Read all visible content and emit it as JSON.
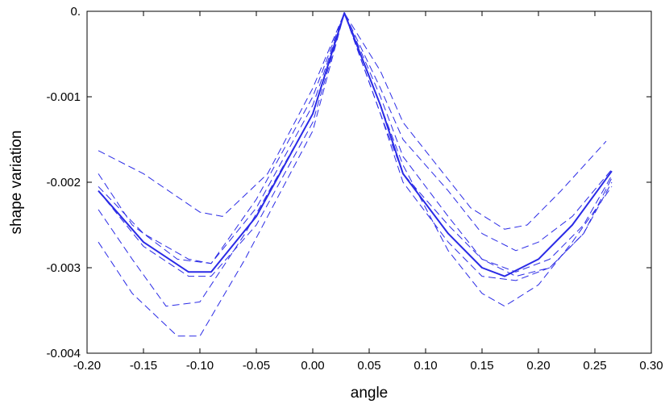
{
  "chart_data": {
    "type": "line",
    "title": "",
    "xlabel": "angle",
    "ylabel": "shape variation",
    "xlim": [
      -0.2,
      0.3
    ],
    "ylim": [
      -0.004,
      0.0
    ],
    "x_ticks": [
      "-0.20",
      "-0.15",
      "-0.10",
      "-0.05",
      "0.00",
      "0.05",
      "0.10",
      "0.15",
      "0.20",
      "0.25",
      "0.30"
    ],
    "y_ticks": [
      "0.",
      "-0.001",
      "-0.002",
      "-0.003",
      "-0.004"
    ],
    "x_tick_values": [
      -0.2,
      -0.15,
      -0.1,
      -0.05,
      0.0,
      0.05,
      0.1,
      0.15,
      0.2,
      0.25,
      0.3
    ],
    "y_tick_values": [
      0.0,
      -0.001,
      -0.002,
      -0.003,
      -0.004
    ],
    "grid": false,
    "legend": false,
    "line_color": "#2a2ae6",
    "series": [
      {
        "style": "solid",
        "x": [
          -0.19,
          -0.15,
          -0.11,
          -0.09,
          -0.05,
          0.0,
          0.028,
          0.06,
          0.08,
          0.12,
          0.15,
          0.17,
          0.2,
          0.23,
          0.265
        ],
        "y": [
          -0.0021,
          -0.0027,
          -0.00305,
          -0.00305,
          -0.0024,
          -0.0012,
          -2e-05,
          -0.0011,
          -0.0019,
          -0.0026,
          -0.003,
          -0.0031,
          -0.0029,
          -0.0025,
          -0.00187
        ]
      },
      {
        "style": "dashed",
        "x": [
          -0.19,
          -0.15,
          -0.1,
          -0.08,
          -0.04,
          0.0,
          0.028,
          0.06,
          0.08,
          0.11,
          0.14,
          0.17,
          0.19,
          0.22,
          0.26
        ],
        "y": [
          -0.00163,
          -0.0019,
          -0.00235,
          -0.0024,
          -0.0019,
          -0.0009,
          -2e-05,
          -0.0007,
          -0.0013,
          -0.0018,
          -0.0023,
          -0.00255,
          -0.0025,
          -0.0021,
          -0.00152
        ]
      },
      {
        "style": "dashed",
        "x": [
          -0.19,
          -0.16,
          -0.12,
          -0.09,
          -0.05,
          0.0,
          0.028,
          0.06,
          0.08,
          0.12,
          0.15,
          0.18,
          0.2,
          0.23,
          0.265
        ],
        "y": [
          -0.0019,
          -0.0025,
          -0.0029,
          -0.00295,
          -0.0023,
          -0.0011,
          -2e-05,
          -0.0009,
          -0.0015,
          -0.0021,
          -0.0026,
          -0.0028,
          -0.0027,
          -0.0024,
          -0.00185
        ]
      },
      {
        "style": "dashed",
        "x": [
          -0.19,
          -0.16,
          -0.13,
          -0.1,
          -0.06,
          0.0,
          0.028,
          0.06,
          0.08,
          0.12,
          0.15,
          0.18,
          0.21,
          0.24,
          0.265
        ],
        "y": [
          -0.00232,
          -0.0029,
          -0.00345,
          -0.0034,
          -0.0026,
          -0.0012,
          -2e-05,
          -0.001,
          -0.0017,
          -0.0024,
          -0.0029,
          -0.0031,
          -0.003,
          -0.0026,
          -0.00195
        ]
      },
      {
        "style": "dashed",
        "x": [
          -0.19,
          -0.16,
          -0.12,
          -0.1,
          -0.06,
          0.0,
          0.028,
          0.06,
          0.08,
          0.12,
          0.15,
          0.17,
          0.2,
          0.23,
          0.265
        ],
        "y": [
          -0.0027,
          -0.0033,
          -0.0038,
          -0.0038,
          -0.0029,
          -0.0014,
          -2e-05,
          -0.0011,
          -0.0018,
          -0.0028,
          -0.0033,
          -0.00345,
          -0.0032,
          -0.0027,
          -0.00205
        ]
      },
      {
        "style": "dashed",
        "x": [
          -0.19,
          -0.15,
          -0.11,
          -0.09,
          -0.05,
          0.0,
          0.028,
          0.06,
          0.08,
          0.12,
          0.15,
          0.18,
          0.21,
          0.24,
          0.265
        ],
        "y": [
          -0.00205,
          -0.0026,
          -0.0029,
          -0.00295,
          -0.0022,
          -0.001,
          -2e-05,
          -0.0012,
          -0.0019,
          -0.0025,
          -0.0029,
          -0.00305,
          -0.0029,
          -0.0025,
          -0.00192
        ]
      },
      {
        "style": "dashed",
        "x": [
          -0.19,
          -0.15,
          -0.11,
          -0.09,
          -0.05,
          0.0,
          0.028,
          0.06,
          0.08,
          0.12,
          0.15,
          0.18,
          0.21,
          0.24,
          0.265
        ],
        "y": [
          -0.0021,
          -0.00275,
          -0.0031,
          -0.0031,
          -0.0025,
          -0.0013,
          -2e-05,
          -0.0012,
          -0.002,
          -0.0027,
          -0.0031,
          -0.00315,
          -0.003,
          -0.0026,
          -0.002
        ]
      }
    ]
  }
}
